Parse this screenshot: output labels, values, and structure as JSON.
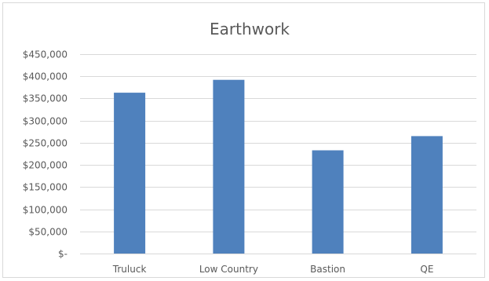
{
  "chart_data": {
    "type": "bar",
    "title": "Earthwork",
    "categories": [
      "Truluck",
      "Low Country",
      "Bastion",
      "QE"
    ],
    "values": [
      363000,
      392000,
      233000,
      265000
    ],
    "ylim": [
      0,
      450000
    ],
    "yticks": [
      0,
      50000,
      100000,
      150000,
      200000,
      250000,
      300000,
      350000,
      400000,
      450000
    ],
    "ytick_labels": [
      "$-",
      "$50,000",
      "$100,000",
      "$150,000",
      "$200,000",
      "$250,000",
      "$300,000",
      "$350,000",
      "$400,000",
      "$450,000"
    ],
    "grid": true,
    "legend": "none",
    "colors": {
      "bar": "#4f81bd",
      "grid": "#d9d9d9",
      "text": "#595959"
    }
  }
}
